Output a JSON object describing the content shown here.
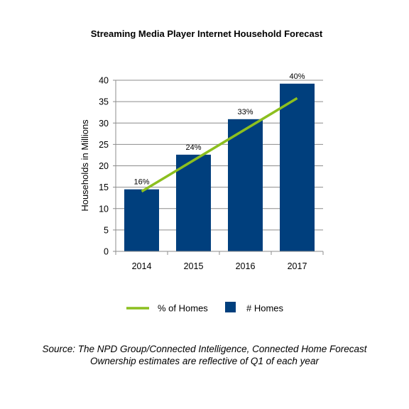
{
  "chart_data": {
    "type": "bar",
    "title": "Streaming Media Player Internet Household Forecast",
    "xlabel": "",
    "ylabel": "Households in Millions",
    "categories": [
      "2014",
      "2015",
      "2016",
      "2017"
    ],
    "ylim": [
      0,
      40
    ],
    "yticks": [
      0,
      5,
      10,
      15,
      20,
      25,
      30,
      35,
      40
    ],
    "grid": true,
    "series": [
      {
        "name": "# Homes",
        "type": "bar",
        "values": [
          14.5,
          22.6,
          30.9,
          39.2
        ],
        "color": "#003f7d"
      },
      {
        "name": "% of Homes",
        "type": "line",
        "values": [
          14.0,
          21.5,
          28.8,
          35.8
        ],
        "labels": [
          "16%",
          "24%",
          "33%",
          "40%"
        ],
        "color": "#8cbf1f"
      }
    ],
    "legend": {
      "placement": "bottom",
      "entries": [
        "% of Homes",
        "# Homes"
      ]
    }
  },
  "footer": {
    "source_line": "Source:  The NPD  Group/Connected  Intelligence,  Connected Home Forecast",
    "note_line": "Ownership  estimates are reflective of Q1  of each year"
  },
  "colors": {
    "bar": "#003f7d",
    "line": "#8cbf1f",
    "grid": "#8c8c8c",
    "axis": "#8c8c8c"
  }
}
